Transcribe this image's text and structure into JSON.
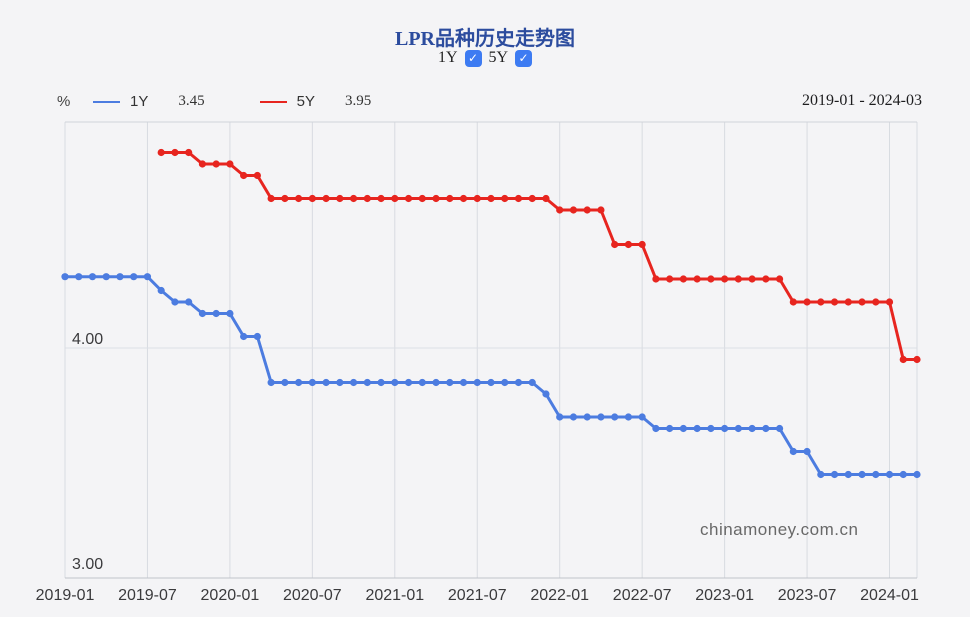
{
  "header": {
    "title": "LPR品种历史走势图",
    "toggles": [
      {
        "label": "1Y",
        "checked": true,
        "check_glyph": "✓"
      },
      {
        "label": "5Y",
        "checked": true,
        "check_glyph": "✓"
      }
    ],
    "date_range": "2019-01 - 2024-03"
  },
  "legend": {
    "unit": "%",
    "items": [
      {
        "name": "1Y",
        "value": "3.45",
        "color": "#4c7ce0"
      },
      {
        "name": "5Y",
        "value": "3.95",
        "color": "#e7251f"
      }
    ]
  },
  "watermark": "chinamoney.com.cn",
  "colors": {
    "series_1y": "#4c7ce0",
    "series_5y": "#e7251f",
    "title": "#2c4c9e",
    "checkbox": "#3d7bf2",
    "background": "#f4f4f6",
    "gridline": "#d8dbe1",
    "axis_text": "#3a3a3c"
  },
  "chart_data": {
    "type": "line",
    "title": "LPR品种历史走势图",
    "ylabel": "%",
    "x_start": "2019-01",
    "x_end": "2024-03",
    "months_total": 63,
    "x_tick_labels": [
      "2019-01",
      "2019-07",
      "2020-01",
      "2020-07",
      "2021-01",
      "2021-07",
      "2022-01",
      "2022-07",
      "2023-01",
      "2023-07",
      "2024-01"
    ],
    "x_tick_month_indices": [
      0,
      6,
      12,
      18,
      24,
      30,
      36,
      42,
      48,
      54,
      60
    ],
    "y_axis_labels": [
      {
        "value": 4.0,
        "label": "4.00"
      },
      {
        "value": 3.0,
        "label": "3.00"
      }
    ],
    "ylim": [
      3.0,
      4.98
    ],
    "grid": true,
    "legend_position": "top-left",
    "series": [
      {
        "name": "1Y",
        "color": "#4c7ce0",
        "start_month": "2019-01",
        "start_month_index": 0,
        "values": [
          4.31,
          4.31,
          4.31,
          4.31,
          4.31,
          4.31,
          4.31,
          4.25,
          4.2,
          4.2,
          4.15,
          4.15,
          4.15,
          4.05,
          4.05,
          3.85,
          3.85,
          3.85,
          3.85,
          3.85,
          3.85,
          3.85,
          3.85,
          3.85,
          3.85,
          3.85,
          3.85,
          3.85,
          3.85,
          3.85,
          3.85,
          3.85,
          3.85,
          3.85,
          3.85,
          3.8,
          3.7,
          3.7,
          3.7,
          3.7,
          3.7,
          3.7,
          3.7,
          3.65,
          3.65,
          3.65,
          3.65,
          3.65,
          3.65,
          3.65,
          3.65,
          3.65,
          3.65,
          3.55,
          3.55,
          3.45,
          3.45,
          3.45,
          3.45,
          3.45,
          3.45,
          3.45,
          3.45
        ]
      },
      {
        "name": "5Y",
        "color": "#e7251f",
        "start_month": "2019-08",
        "start_month_index": 7,
        "values": [
          4.85,
          4.85,
          4.85,
          4.8,
          4.8,
          4.8,
          4.75,
          4.75,
          4.65,
          4.65,
          4.65,
          4.65,
          4.65,
          4.65,
          4.65,
          4.65,
          4.65,
          4.65,
          4.65,
          4.65,
          4.65,
          4.65,
          4.65,
          4.65,
          4.65,
          4.65,
          4.65,
          4.65,
          4.65,
          4.6,
          4.6,
          4.6,
          4.6,
          4.45,
          4.45,
          4.45,
          4.3,
          4.3,
          4.3,
          4.3,
          4.3,
          4.3,
          4.3,
          4.3,
          4.3,
          4.3,
          4.2,
          4.2,
          4.2,
          4.2,
          4.2,
          4.2,
          4.2,
          4.2,
          3.95,
          3.95
        ]
      }
    ]
  }
}
